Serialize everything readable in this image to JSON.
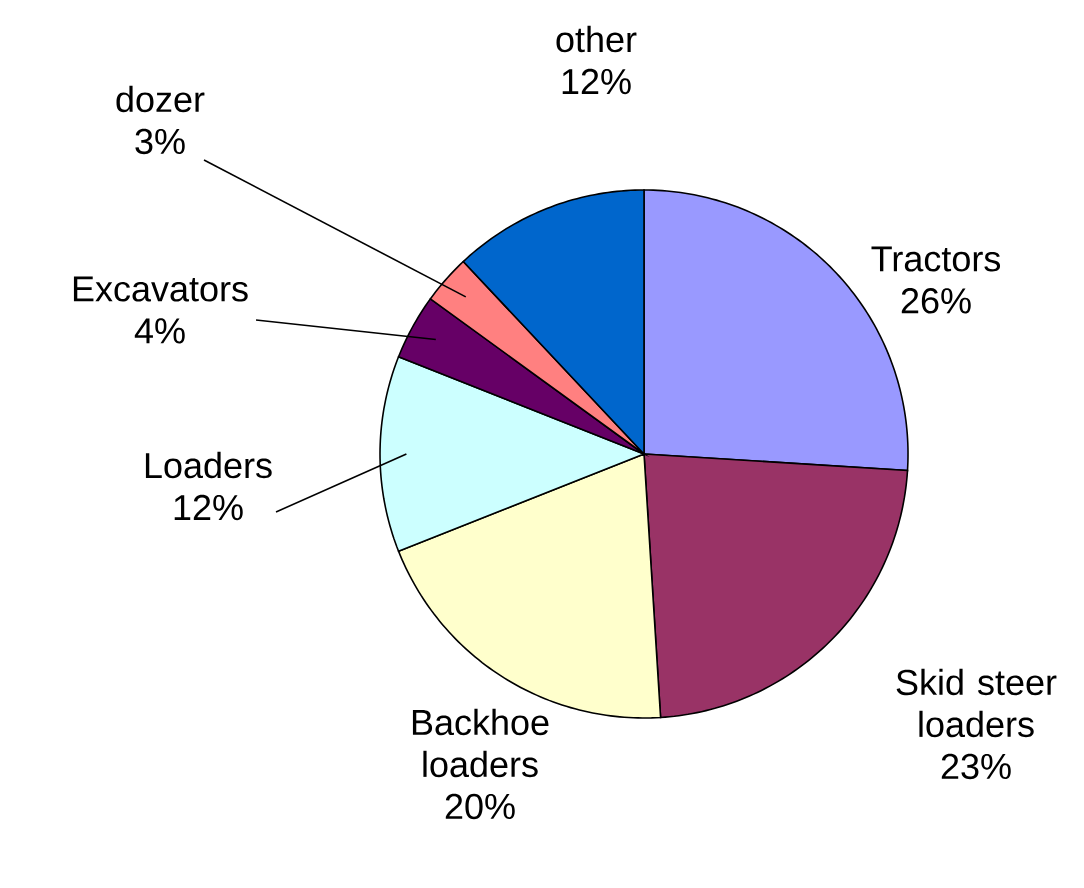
{
  "chart_data": {
    "type": "pie",
    "categories": [
      "Tractors",
      "Skid steer loaders",
      "Backhoe loaders",
      "Loaders",
      "Excavators",
      "dozer",
      "other"
    ],
    "values": [
      26,
      23,
      20,
      12,
      4,
      3,
      12
    ],
    "value_labels": [
      "26%",
      "23%",
      "20%",
      "12%",
      "4%",
      "3%",
      "12%"
    ],
    "colors": [
      "#9999ff",
      "#993366",
      "#ffffcc",
      "#ccffff",
      "#660066",
      "#ff8080",
      "#0066cc"
    ]
  }
}
